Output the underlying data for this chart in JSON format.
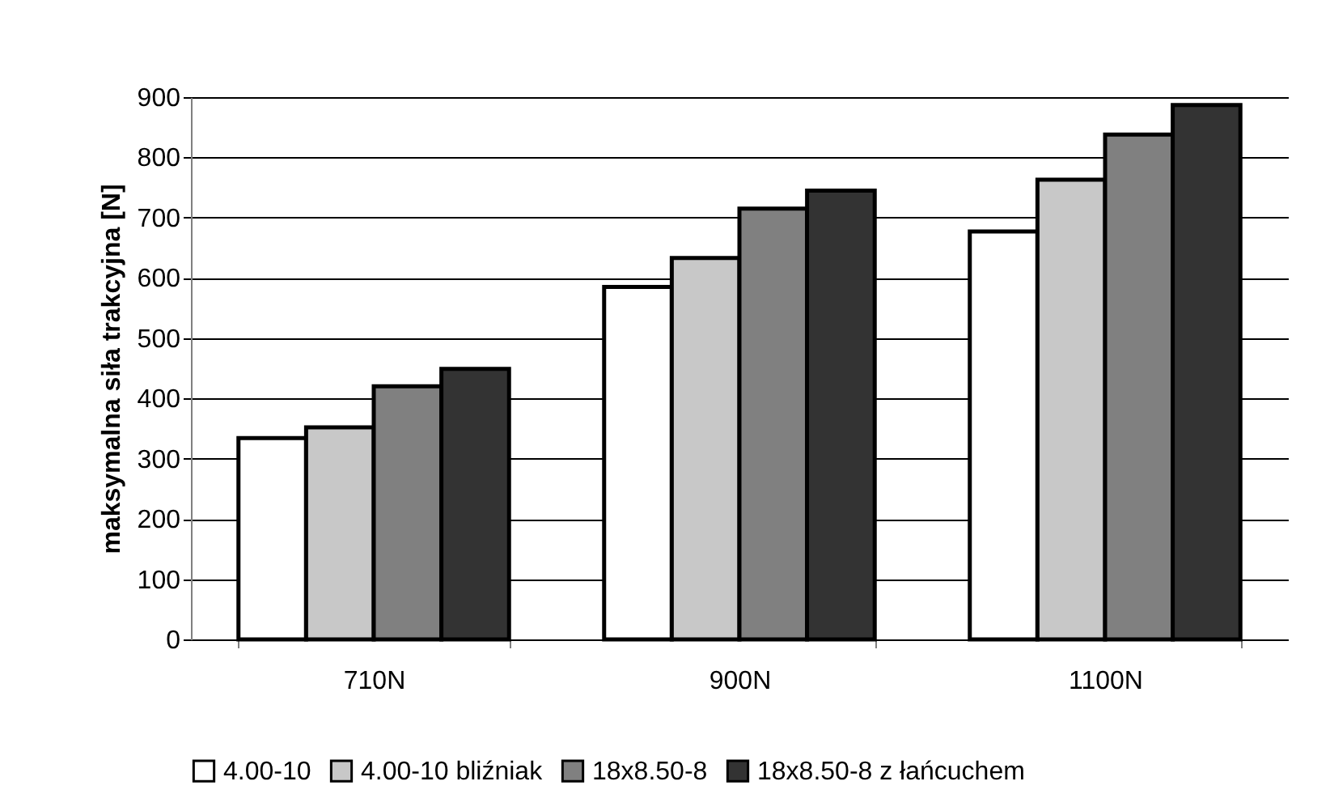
{
  "chart_data": {
    "type": "bar",
    "ylabel": "maksymalna siła trakcyjna [N]",
    "categories": [
      "710N",
      "900N",
      "1100N"
    ],
    "series": [
      {
        "name": "4.00-10",
        "color": "#ffffff",
        "values": [
          334,
          585,
          677
        ]
      },
      {
        "name": "4.00-10 bliźniak",
        "color": "#c8c8c8",
        "values": [
          352,
          633,
          763
        ]
      },
      {
        "name": "18x8.50-8",
        "color": "#808080",
        "values": [
          420,
          715,
          838
        ]
      },
      {
        "name": "18x8.50-8 z łańcuchem",
        "color": "#333333",
        "values": [
          449,
          745,
          887
        ]
      }
    ],
    "ylim": [
      0,
      900
    ],
    "yticks": [
      0,
      100,
      200,
      300,
      400,
      500,
      600,
      700,
      800,
      900
    ],
    "grid": "y",
    "legend": "bottom"
  }
}
